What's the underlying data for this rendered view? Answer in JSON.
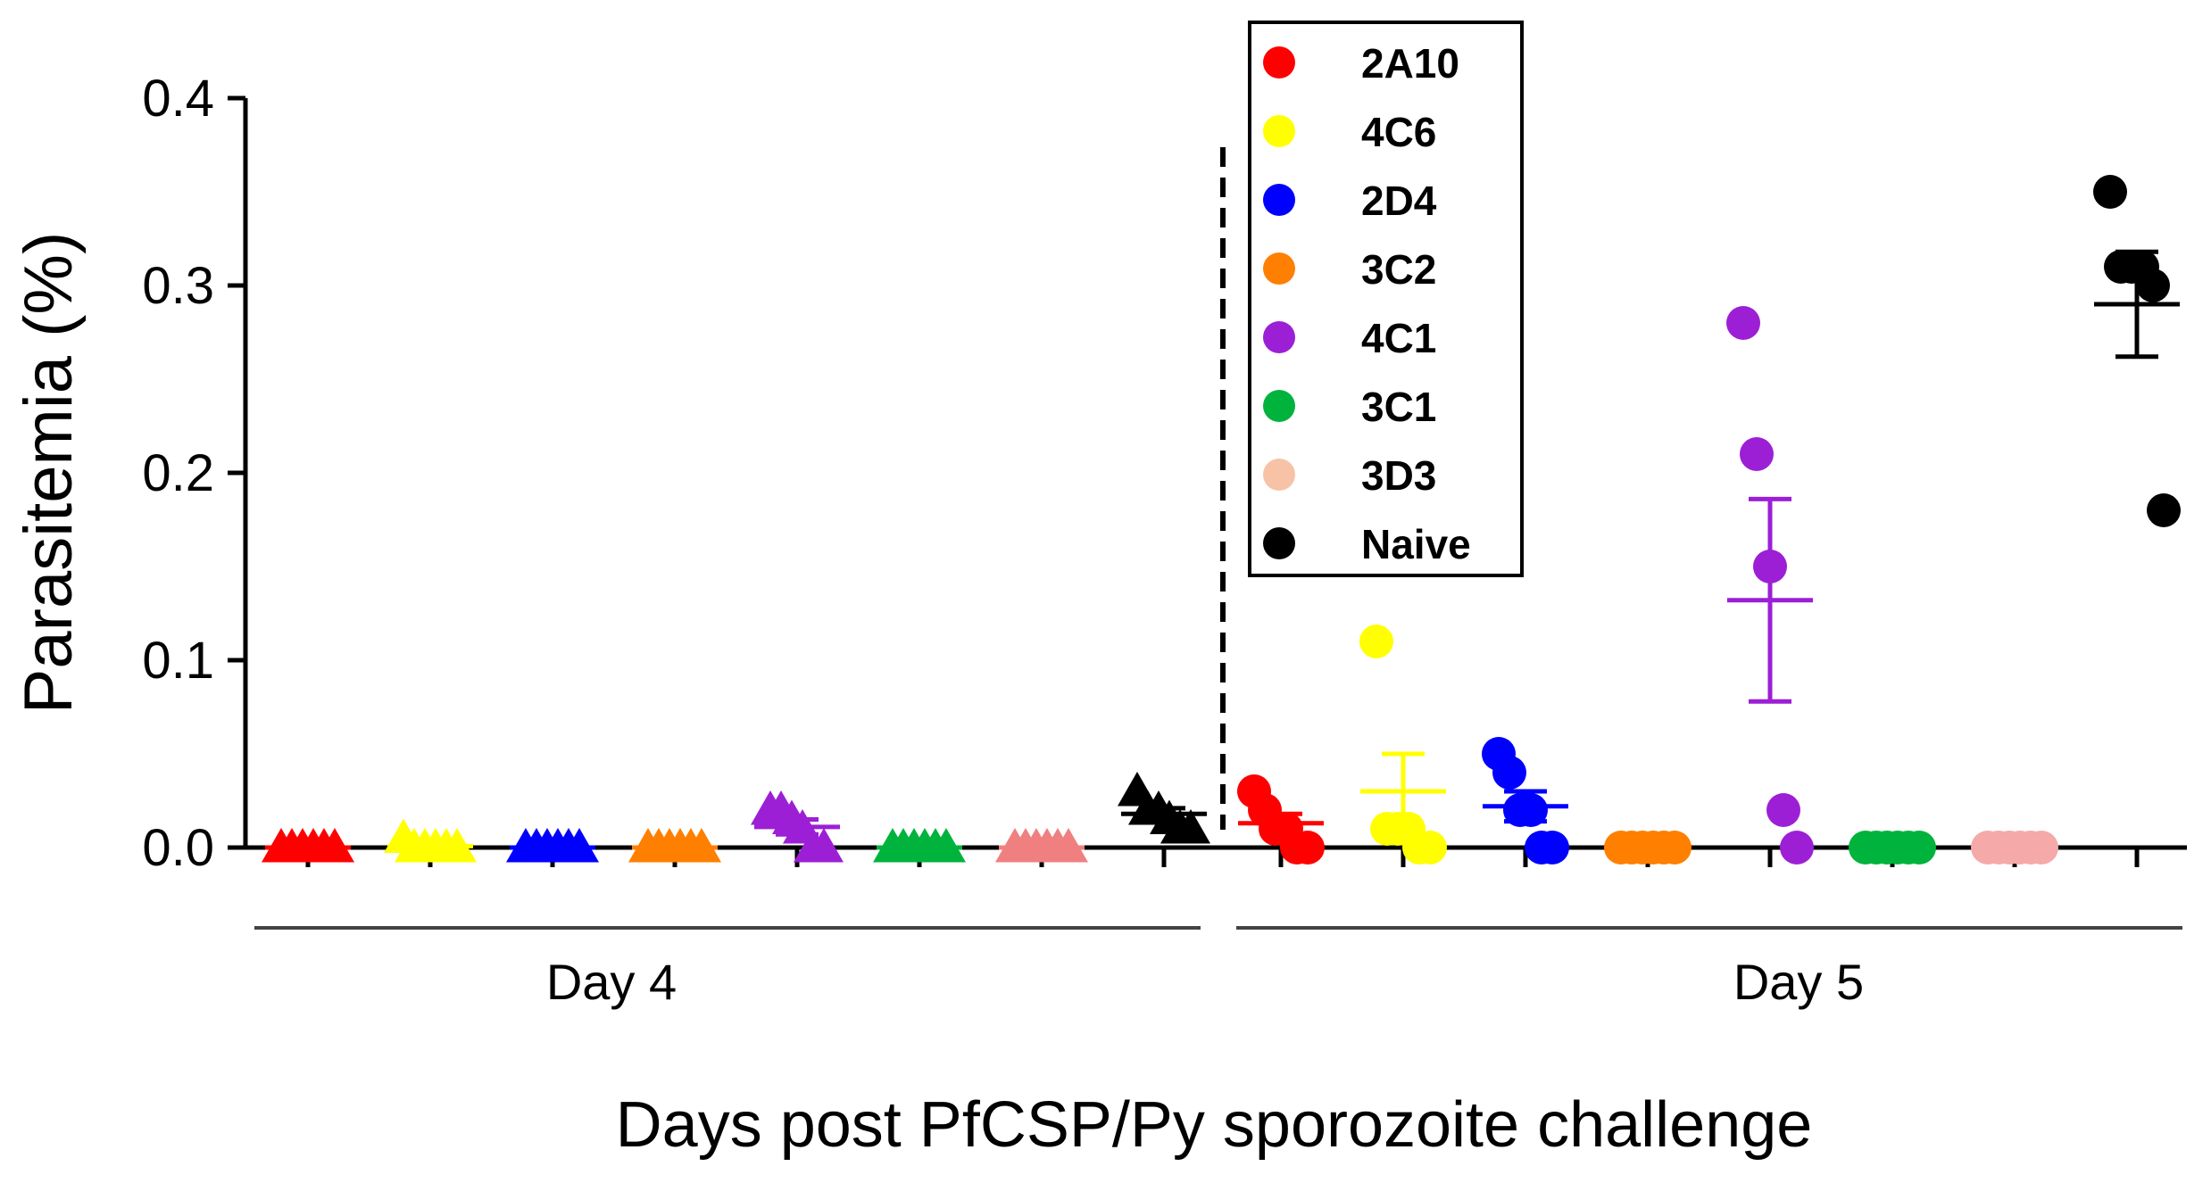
{
  "chart_data": {
    "type": "scatter",
    "ylabel": "Parasitemia (%)",
    "xlabel": "Days post PfCSP/Py sporozoite challenge",
    "ylim": [
      0,
      0.4
    ],
    "yticks": [
      "0.0",
      "0.1",
      "0.2",
      "0.3",
      "0.4"
    ],
    "groups": [
      "Day 4",
      "Day 5"
    ],
    "legend_placement": "top-center",
    "series": [
      {
        "name": "2A10",
        "color": "#ff0000",
        "day4": {
          "marker": "triangle",
          "values": [
            0,
            0,
            0,
            0,
            0,
            0
          ],
          "mean": 0.0,
          "sem": 0.0
        },
        "day5": {
          "marker": "circle",
          "values": [
            0.03,
            0.02,
            0.01,
            0.01,
            0.0,
            0.0
          ],
          "mean": 0.013,
          "sem": 0.005
        }
      },
      {
        "name": "4C6",
        "color": "#ffff00",
        "day4": {
          "marker": "triangle",
          "values": [
            0.005,
            0,
            0,
            0,
            0,
            0
          ],
          "mean": 0.0008,
          "sem": 0.0008
        },
        "day5": {
          "marker": "circle",
          "values": [
            0.11,
            0.01,
            0.01,
            0.01,
            0.0,
            0.0
          ],
          "mean": 0.03,
          "sem": 0.02
        }
      },
      {
        "name": "2D4",
        "color": "#0000ff",
        "day4": {
          "marker": "triangle",
          "values": [
            0,
            0,
            0,
            0,
            0,
            0
          ],
          "mean": 0.0,
          "sem": 0.0
        },
        "day5": {
          "marker": "circle",
          "values": [
            0.05,
            0.04,
            0.02,
            0.02,
            0.0,
            0.0
          ],
          "mean": 0.022,
          "sem": 0.008
        }
      },
      {
        "name": "3C2",
        "color": "#ff7f00",
        "day4": {
          "marker": "triangle",
          "values": [
            0,
            0,
            0,
            0,
            0,
            0
          ],
          "mean": 0.0,
          "sem": 0.0
        },
        "day5": {
          "marker": "circle",
          "values": [
            0,
            0,
            0,
            0,
            0,
            0
          ],
          "mean": 0.0,
          "sem": 0.0
        }
      },
      {
        "name": "4C1",
        "color": "#9c1fd6",
        "day4": {
          "marker": "triangle",
          "values": [
            0.02,
            0.02,
            0.015,
            0.01,
            0.0,
            0.0
          ],
          "mean": 0.011,
          "sem": 0.004
        },
        "day5": {
          "marker": "circle",
          "values": [
            0.28,
            0.21,
            0.15,
            0.02,
            0.0
          ],
          "mean": 0.132,
          "sem": 0.054
        }
      },
      {
        "name": "3C1",
        "color": "#00b33c",
        "day4": {
          "marker": "triangle",
          "values": [
            0,
            0,
            0,
            0,
            0,
            0
          ],
          "mean": 0.0,
          "sem": 0.0
        },
        "day5": {
          "marker": "circle",
          "values": [
            0,
            0,
            0,
            0,
            0,
            0
          ],
          "mean": 0.0,
          "sem": 0.0
        }
      },
      {
        "name": "3D3",
        "color": "#f5b49a",
        "legend_color": "#f7c2a6",
        "day4_color": "#f08080",
        "day5_color": "#f5a9a9",
        "day4": {
          "marker": "triangle",
          "values": [
            0,
            0,
            0,
            0,
            0,
            0
          ],
          "mean": 0.0,
          "sem": 0.0
        },
        "day5": {
          "marker": "circle",
          "values": [
            0,
            0,
            0,
            0,
            0,
            0
          ],
          "mean": 0.0,
          "sem": 0.0
        }
      },
      {
        "name": "Naive",
        "color": "#000000",
        "day4": {
          "marker": "triangle",
          "values": [
            0.03,
            0.02,
            0.02,
            0.015,
            0.01,
            0.01
          ],
          "mean": 0.018,
          "sem": 0.003
        },
        "day5": {
          "marker": "circle",
          "values": [
            0.35,
            0.31,
            0.31,
            0.31,
            0.3,
            0.18
          ],
          "mean": 0.29,
          "sem": 0.028
        }
      }
    ]
  }
}
